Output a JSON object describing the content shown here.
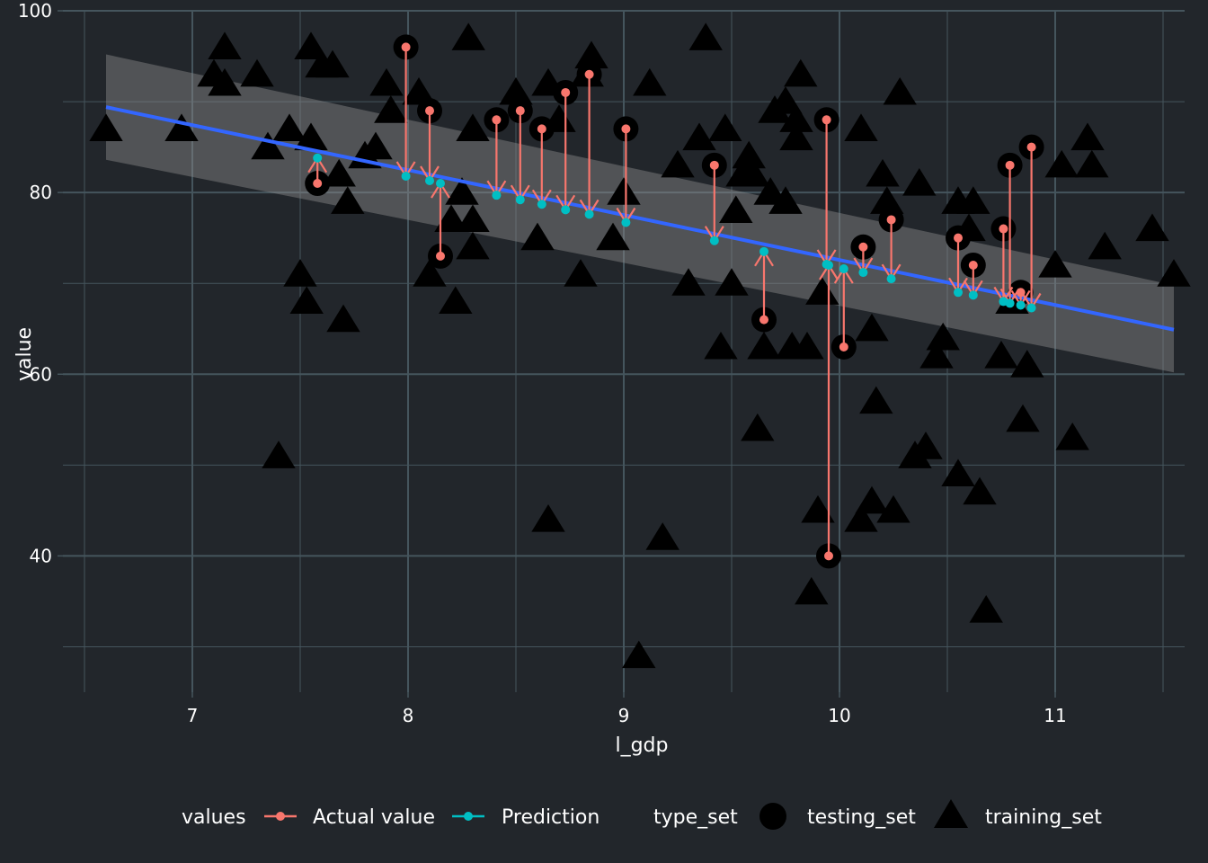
{
  "chart_data": {
    "type": "scatter",
    "title": "",
    "xlabel": "l_gdp",
    "ylabel": "value",
    "xlim": [
      6.4,
      11.6
    ],
    "ylim": [
      25,
      100
    ],
    "x_ticks": [
      7,
      8,
      9,
      10,
      11
    ],
    "y_ticks": [
      40,
      60,
      80,
      100
    ],
    "grid": true,
    "legend_position": "bottom",
    "legend": {
      "values_title": "values",
      "values_entries": [
        "Actual value",
        "Prediction"
      ],
      "type_title": "type_set",
      "type_entries": [
        "testing_set",
        "training_set"
      ]
    },
    "colors": {
      "actual": "#f8766d",
      "prediction": "#00bfc4",
      "fit": "#3366ff",
      "band": "#8c8c8c",
      "background": "#22262b",
      "grid": "#45555d"
    },
    "fit_line": {
      "x": [
        6.6,
        11.55
      ],
      "y": [
        89.4,
        64.9
      ]
    },
    "confidence_band": {
      "x": [
        6.6,
        11.55
      ],
      "lower": [
        83.6,
        60.2
      ],
      "upper": [
        95.2,
        69.8
      ]
    },
    "testing_set": [
      {
        "x": 7.58,
        "actual": 81,
        "predicted": 83.8
      },
      {
        "x": 7.99,
        "actual": 96,
        "predicted": 81.8
      },
      {
        "x": 8.1,
        "actual": 89,
        "predicted": 81.3
      },
      {
        "x": 8.15,
        "actual": 73,
        "predicted": 81.0
      },
      {
        "x": 8.41,
        "actual": 88,
        "predicted": 79.7
      },
      {
        "x": 8.52,
        "actual": 89,
        "predicted": 79.2
      },
      {
        "x": 8.62,
        "actual": 87,
        "predicted": 78.7
      },
      {
        "x": 8.73,
        "actual": 91,
        "predicted": 78.1
      },
      {
        "x": 8.84,
        "actual": 93,
        "predicted": 77.6
      },
      {
        "x": 9.01,
        "actual": 87,
        "predicted": 76.7
      },
      {
        "x": 9.42,
        "actual": 83,
        "predicted": 74.7
      },
      {
        "x": 9.65,
        "actual": 66,
        "predicted": 73.5
      },
      {
        "x": 9.94,
        "actual": 88,
        "predicted": 72.1
      },
      {
        "x": 9.95,
        "actual": 40,
        "predicted": 72.0
      },
      {
        "x": 10.02,
        "actual": 63,
        "predicted": 71.6
      },
      {
        "x": 10.11,
        "actual": 74,
        "predicted": 71.2
      },
      {
        "x": 10.24,
        "actual": 77,
        "predicted": 70.5
      },
      {
        "x": 10.55,
        "actual": 75,
        "predicted": 69.0
      },
      {
        "x": 10.62,
        "actual": 72,
        "predicted": 68.7
      },
      {
        "x": 10.76,
        "actual": 76,
        "predicted": 68.0
      },
      {
        "x": 10.79,
        "actual": 83,
        "predicted": 67.8
      },
      {
        "x": 10.84,
        "actual": 69,
        "predicted": 67.6
      },
      {
        "x": 10.89,
        "actual": 85,
        "predicted": 67.3
      }
    ],
    "training_set": [
      {
        "x": 6.6,
        "y": 87
      },
      {
        "x": 6.95,
        "y": 87
      },
      {
        "x": 7.1,
        "y": 93
      },
      {
        "x": 7.15,
        "y": 96
      },
      {
        "x": 7.15,
        "y": 92
      },
      {
        "x": 7.3,
        "y": 93
      },
      {
        "x": 7.35,
        "y": 85
      },
      {
        "x": 7.4,
        "y": 51
      },
      {
        "x": 7.45,
        "y": 87
      },
      {
        "x": 7.5,
        "y": 71
      },
      {
        "x": 7.53,
        "y": 68
      },
      {
        "x": 7.55,
        "y": 96
      },
      {
        "x": 7.55,
        "y": 86
      },
      {
        "x": 7.6,
        "y": 94
      },
      {
        "x": 7.65,
        "y": 94
      },
      {
        "x": 7.68,
        "y": 82
      },
      {
        "x": 7.7,
        "y": 66
      },
      {
        "x": 7.72,
        "y": 79
      },
      {
        "x": 7.8,
        "y": 84
      },
      {
        "x": 7.85,
        "y": 85
      },
      {
        "x": 7.9,
        "y": 92
      },
      {
        "x": 7.92,
        "y": 89
      },
      {
        "x": 8.05,
        "y": 91
      },
      {
        "x": 8.1,
        "y": 71
      },
      {
        "x": 8.2,
        "y": 77
      },
      {
        "x": 8.22,
        "y": 68
      },
      {
        "x": 8.25,
        "y": 80
      },
      {
        "x": 8.28,
        "y": 97
      },
      {
        "x": 8.3,
        "y": 87
      },
      {
        "x": 8.3,
        "y": 74
      },
      {
        "x": 8.3,
        "y": 77
      },
      {
        "x": 8.5,
        "y": 91
      },
      {
        "x": 8.6,
        "y": 75
      },
      {
        "x": 8.65,
        "y": 44
      },
      {
        "x": 8.65,
        "y": 92
      },
      {
        "x": 8.7,
        "y": 88
      },
      {
        "x": 8.8,
        "y": 71
      },
      {
        "x": 8.83,
        "y": 93
      },
      {
        "x": 8.85,
        "y": 95
      },
      {
        "x": 8.95,
        "y": 75
      },
      {
        "x": 9.0,
        "y": 80
      },
      {
        "x": 9.07,
        "y": 29
      },
      {
        "x": 9.12,
        "y": 92
      },
      {
        "x": 9.18,
        "y": 42
      },
      {
        "x": 9.25,
        "y": 83
      },
      {
        "x": 9.3,
        "y": 70
      },
      {
        "x": 9.35,
        "y": 86
      },
      {
        "x": 9.38,
        "y": 97
      },
      {
        "x": 9.45,
        "y": 63
      },
      {
        "x": 9.47,
        "y": 87
      },
      {
        "x": 9.5,
        "y": 70
      },
      {
        "x": 9.52,
        "y": 78
      },
      {
        "x": 9.55,
        "y": 82
      },
      {
        "x": 9.58,
        "y": 84
      },
      {
        "x": 9.6,
        "y": 82
      },
      {
        "x": 9.62,
        "y": 54
      },
      {
        "x": 9.65,
        "y": 63
      },
      {
        "x": 9.68,
        "y": 80
      },
      {
        "x": 9.7,
        "y": 89
      },
      {
        "x": 9.75,
        "y": 90
      },
      {
        "x": 9.75,
        "y": 79
      },
      {
        "x": 9.78,
        "y": 63
      },
      {
        "x": 9.8,
        "y": 88
      },
      {
        "x": 9.8,
        "y": 86
      },
      {
        "x": 9.82,
        "y": 93
      },
      {
        "x": 9.85,
        "y": 63
      },
      {
        "x": 9.87,
        "y": 36
      },
      {
        "x": 9.9,
        "y": 45
      },
      {
        "x": 9.92,
        "y": 69
      },
      {
        "x": 10.1,
        "y": 44
      },
      {
        "x": 10.1,
        "y": 87
      },
      {
        "x": 10.15,
        "y": 46
      },
      {
        "x": 10.15,
        "y": 65
      },
      {
        "x": 10.17,
        "y": 57
      },
      {
        "x": 10.2,
        "y": 82
      },
      {
        "x": 10.22,
        "y": 79
      },
      {
        "x": 10.25,
        "y": 45
      },
      {
        "x": 10.28,
        "y": 91
      },
      {
        "x": 10.35,
        "y": 51
      },
      {
        "x": 10.37,
        "y": 81
      },
      {
        "x": 10.4,
        "y": 52
      },
      {
        "x": 10.45,
        "y": 62
      },
      {
        "x": 10.48,
        "y": 64
      },
      {
        "x": 10.55,
        "y": 49
      },
      {
        "x": 10.55,
        "y": 79
      },
      {
        "x": 10.6,
        "y": 76
      },
      {
        "x": 10.62,
        "y": 79
      },
      {
        "x": 10.65,
        "y": 47
      },
      {
        "x": 10.68,
        "y": 34
      },
      {
        "x": 10.75,
        "y": 62
      },
      {
        "x": 10.8,
        "y": 68
      },
      {
        "x": 10.85,
        "y": 55
      },
      {
        "x": 10.87,
        "y": 61
      },
      {
        "x": 11.0,
        "y": 72
      },
      {
        "x": 11.03,
        "y": 83
      },
      {
        "x": 11.08,
        "y": 53
      },
      {
        "x": 11.15,
        "y": 86
      },
      {
        "x": 11.17,
        "y": 83
      },
      {
        "x": 11.23,
        "y": 74
      },
      {
        "x": 11.45,
        "y": 76
      },
      {
        "x": 11.55,
        "y": 71
      }
    ]
  }
}
